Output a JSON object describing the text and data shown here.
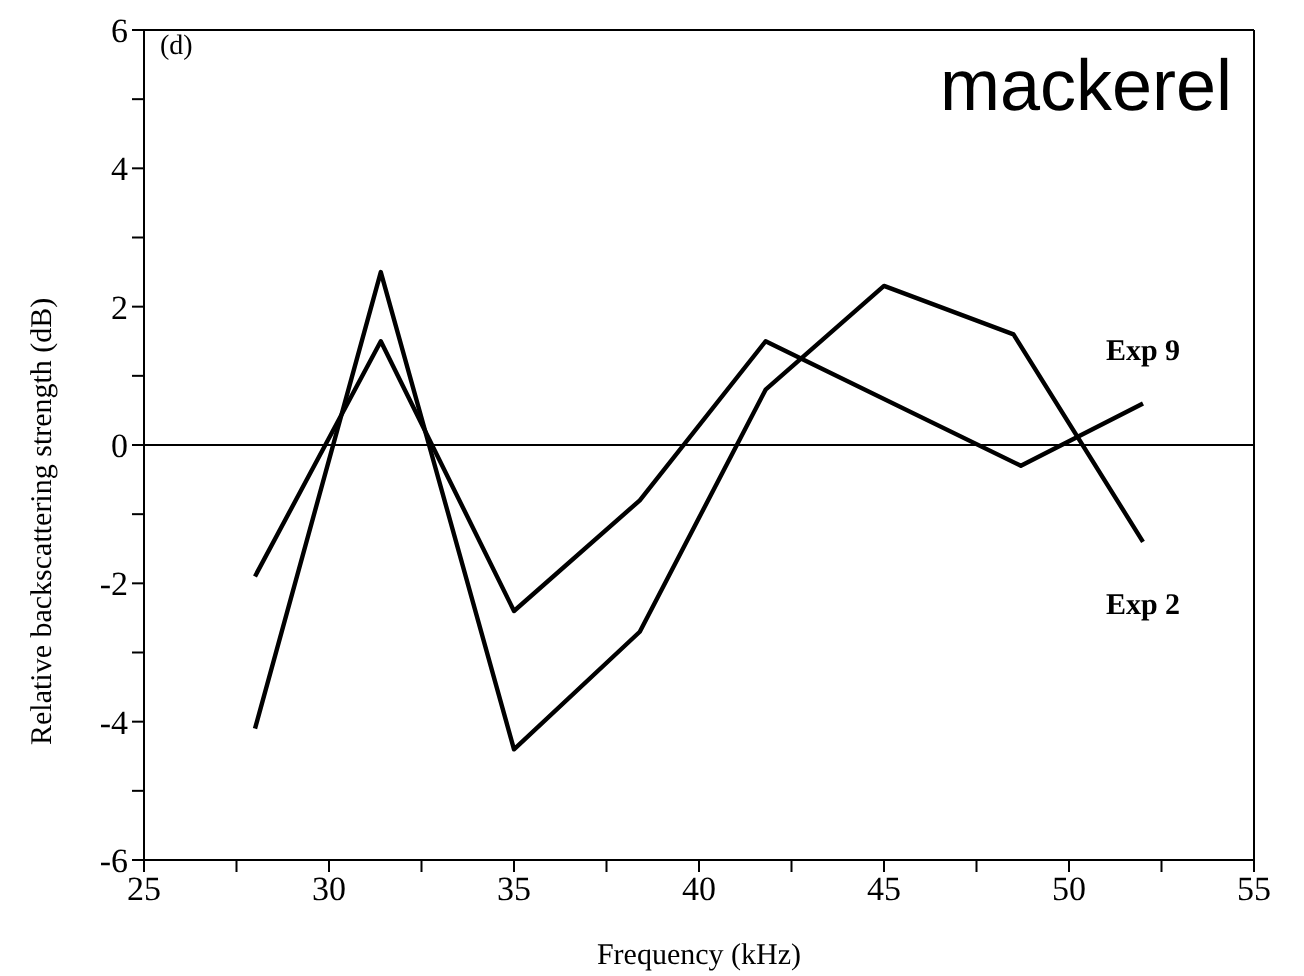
{
  "chart_data": {
    "type": "line",
    "xlabel": "Frequency (kHz)",
    "ylabel": "Relative backscattering strength (dB)",
    "annotations": [
      "(d)",
      "mackerel"
    ],
    "xlim": [
      25,
      55
    ],
    "xticks": [
      25,
      {
        "value": 27.5,
        "label": null
      },
      30,
      {
        "value": 32.5,
        "label": null
      },
      35,
      {
        "value": 37.5,
        "label": null
      },
      40,
      {
        "value": 42.5,
        "label": null
      },
      45,
      {
        "value": 47.5,
        "label": null
      },
      50,
      {
        "value": 52.5,
        "label": null
      },
      55
    ],
    "ylim": [
      -6,
      6
    ],
    "yticks": [
      -6,
      {
        "value": -5,
        "label": null
      },
      -4,
      {
        "value": -3,
        "label": null
      },
      -2,
      {
        "value": -1,
        "label": null
      },
      0,
      {
        "value": 1,
        "label": null
      },
      2,
      {
        "value": 3,
        "label": null
      },
      4,
      {
        "value": 5,
        "label": null
      },
      6
    ],
    "grid": false,
    "legend": false,
    "marker": "none",
    "line_style": "solid",
    "ref_lines": [
      {
        "axis": "y",
        "value": 0,
        "color": "#000000"
      }
    ],
    "series": [
      {
        "name": "Exp 9",
        "color": "#000000",
        "x": [
          28,
          31.4,
          35,
          38.4,
          41.8,
          48.7,
          52
        ],
        "values": [
          -1.9,
          1.5,
          -2.4,
          -0.8,
          1.5,
          -0.3,
          0.6
        ]
      },
      {
        "name": "Exp 2",
        "color": "#000000",
        "x": [
          28,
          31.4,
          35,
          38.4,
          41.8,
          45,
          48.5,
          52
        ],
        "values": [
          -4.1,
          2.5,
          -4.4,
          -2.7,
          0.8,
          2.3,
          1.6,
          -1.4
        ]
      }
    ]
  }
}
